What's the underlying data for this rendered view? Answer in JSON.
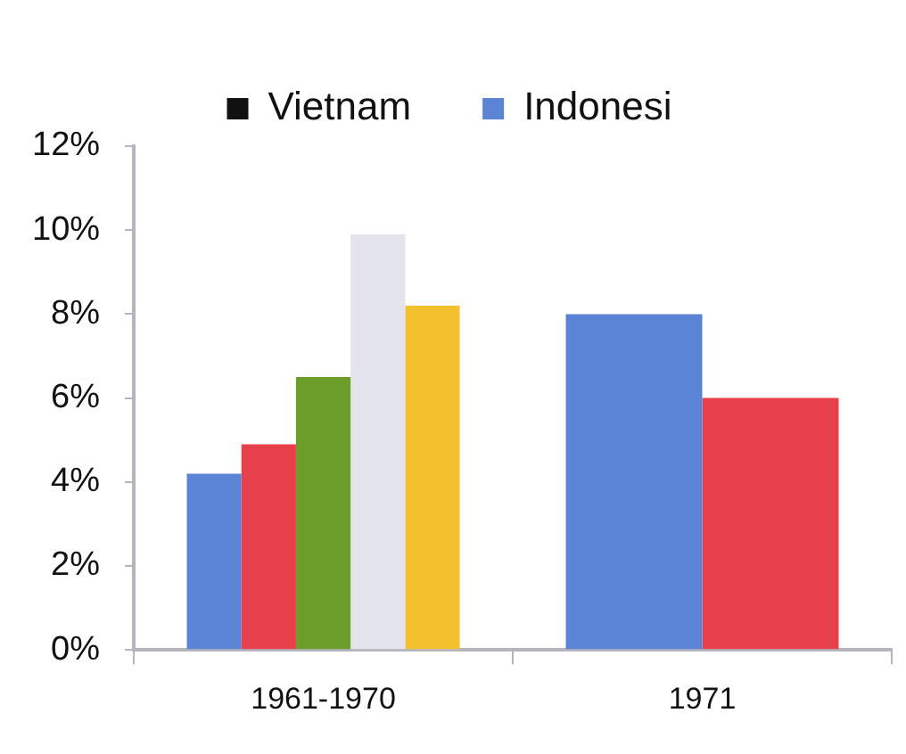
{
  "chart_data": {
    "type": "bar",
    "categories": [
      "1961-1970",
      "1971"
    ],
    "series": [
      {
        "name": "Vietnam",
        "color": "#111111",
        "values": [
          null,
          null
        ]
      },
      {
        "name": "Indonesi",
        "color": "#5b84d6",
        "values": [
          4.2,
          8.0
        ]
      },
      {
        "color": "#e8404a",
        "values": [
          4.9,
          6.0
        ]
      },
      {
        "color": "#6e9e2a",
        "values": [
          6.5,
          null
        ]
      },
      {
        "color": "#e4e4ec",
        "values": [
          9.9,
          null
        ]
      },
      {
        "color": "#f5c02e",
        "values": [
          8.2,
          null
        ]
      }
    ],
    "ylim": [
      0,
      12
    ],
    "yticks": [
      {
        "value": 0,
        "label": "0%"
      },
      {
        "value": 2,
        "label": "2%"
      },
      {
        "value": 4,
        "label": "4%"
      },
      {
        "value": 6,
        "label": "6%"
      },
      {
        "value": 8,
        "label": "8%"
      },
      {
        "value": 10,
        "label": "10%"
      },
      {
        "value": 12,
        "label": "12%"
      }
    ],
    "grid": false,
    "legend": "top"
  }
}
